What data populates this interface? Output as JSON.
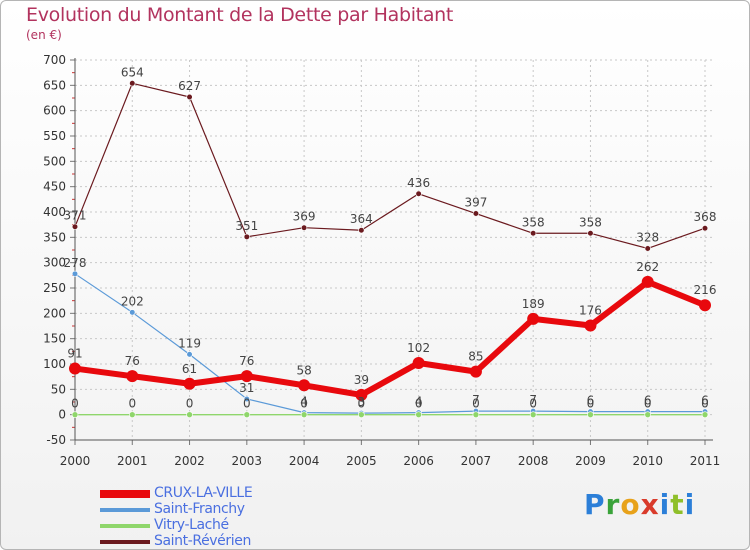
{
  "title": "Evolution du Montant de la Dette par Habitant",
  "subtitle": "(en €)",
  "logo": "Proxiti",
  "chart_data": {
    "type": "line",
    "title": "Evolution du Montant de la Dette par Habitant",
    "ylabel": "(en €)",
    "x": [
      "2000",
      "2001",
      "2002",
      "2003",
      "2004",
      "2005",
      "2006",
      "2007",
      "2008",
      "2009",
      "2010",
      "2011"
    ],
    "ylim": [
      -50,
      700
    ],
    "yticks": [
      -50,
      0,
      50,
      100,
      150,
      200,
      250,
      300,
      350,
      400,
      450,
      500,
      550,
      600,
      650,
      700
    ],
    "grid": "horizontal dashed",
    "legend_position": "bottom-left",
    "series": [
      {
        "name": "CRUX-LA-VILLE",
        "color": "#e8090d",
        "values": [
          91,
          76,
          61,
          76,
          58,
          39,
          102,
          85,
          189,
          176,
          262,
          216
        ],
        "labels": [
          "91",
          "76",
          "61",
          "76",
          "58",
          "39",
          "102",
          "85",
          "189",
          "176",
          "262",
          "216"
        ]
      },
      {
        "name": "Saint-Franchy",
        "color": "#5b9ad8",
        "values": [
          278,
          202,
          119,
          31,
          4,
          3,
          4,
          7,
          7,
          6,
          6,
          6
        ],
        "labels": [
          "278",
          "202",
          "119",
          "31",
          "4",
          "3",
          "4",
          "7",
          "7",
          "6",
          "6",
          "6"
        ]
      },
      {
        "name": "Vitry-Laché",
        "color": "#8fd66b",
        "values": [
          0,
          0,
          0,
          0,
          0,
          0,
          0,
          0,
          0,
          0,
          0,
          0
        ],
        "labels": [
          "0",
          "0",
          "0",
          "0",
          "0",
          "0",
          "0",
          "0",
          "0",
          "0",
          "0",
          "0"
        ]
      },
      {
        "name": "Saint-Révérien",
        "color": "#6b1a1f",
        "values": [
          371,
          654,
          627,
          351,
          369,
          364,
          436,
          397,
          358,
          358,
          328,
          368
        ],
        "labels": [
          "371",
          "654",
          "627",
          "351",
          "369",
          "364",
          "436",
          "397",
          "358",
          "358",
          "328",
          "368"
        ]
      }
    ]
  }
}
